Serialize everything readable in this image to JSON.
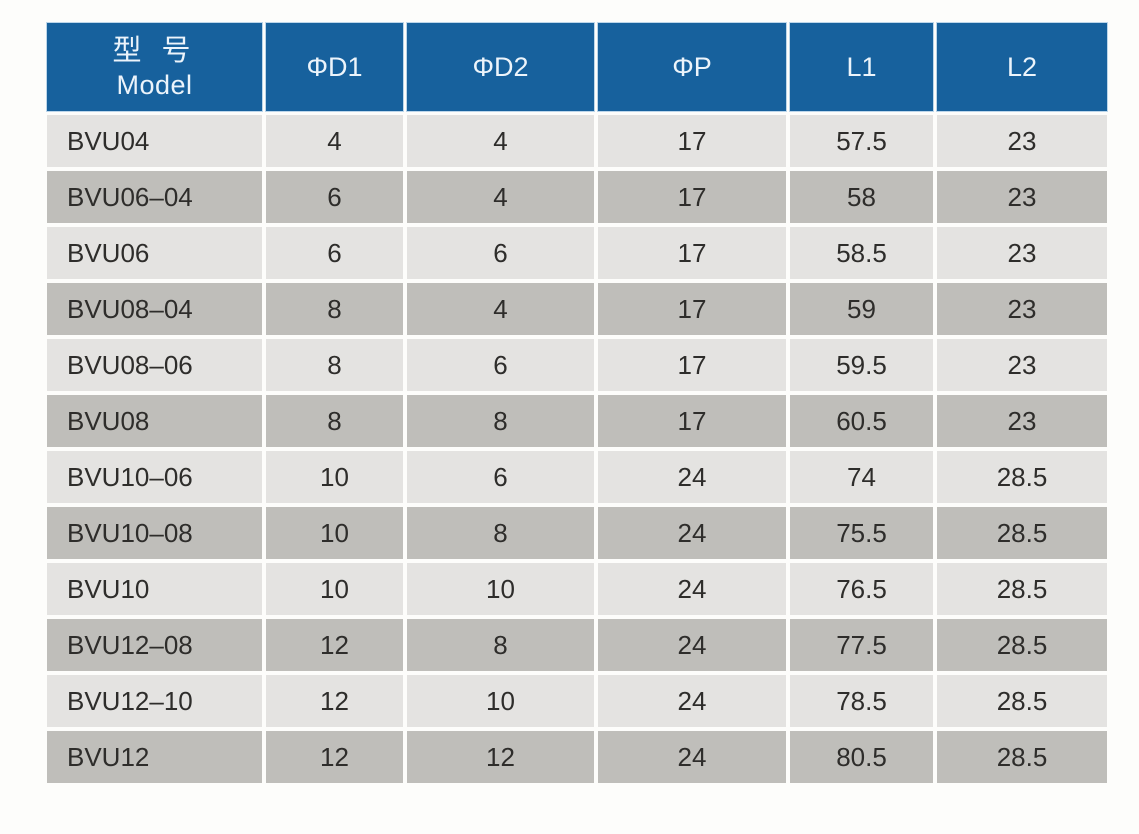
{
  "colors": {
    "header_bg": "#17619d",
    "header_text": "#ecf4fb",
    "row_light": "#e4e3e1",
    "row_dark": "#bfbeba",
    "data_text": "#2e2d2b",
    "page_bg": "#fdfdfb"
  },
  "table": {
    "header": {
      "model_zh": "型 号",
      "model_en": "Model",
      "columns": [
        "ΦD1",
        "ΦD2",
        "ΦP",
        "L1",
        "L2"
      ]
    },
    "rows": [
      [
        "BVU04",
        "4",
        "4",
        "17",
        "57.5",
        "23"
      ],
      [
        "BVU06–04",
        "6",
        "4",
        "17",
        "58",
        "23"
      ],
      [
        "BVU06",
        "6",
        "6",
        "17",
        "58.5",
        "23"
      ],
      [
        "BVU08–04",
        "8",
        "4",
        "17",
        "59",
        "23"
      ],
      [
        "BVU08–06",
        "8",
        "6",
        "17",
        "59.5",
        "23"
      ],
      [
        "BVU08",
        "8",
        "8",
        "17",
        "60.5",
        "23"
      ],
      [
        "BVU10–06",
        "10",
        "6",
        "24",
        "74",
        "28.5"
      ],
      [
        "BVU10–08",
        "10",
        "8",
        "24",
        "75.5",
        "28.5"
      ],
      [
        "BVU10",
        "10",
        "10",
        "24",
        "76.5",
        "28.5"
      ],
      [
        "BVU12–08",
        "12",
        "8",
        "24",
        "77.5",
        "28.5"
      ],
      [
        "BVU12–10",
        "12",
        "10",
        "24",
        "78.5",
        "28.5"
      ],
      [
        "BVU12",
        "12",
        "12",
        "24",
        "80.5",
        "28.5"
      ]
    ]
  },
  "chart_data": {
    "type": "table",
    "title": "",
    "columns": [
      "Model",
      "ΦD1",
      "ΦD2",
      "ΦP",
      "L1",
      "L2"
    ],
    "rows": [
      [
        "BVU04",
        4,
        4,
        17,
        57.5,
        23
      ],
      [
        "BVU06-04",
        6,
        4,
        17,
        58,
        23
      ],
      [
        "BVU06",
        6,
        6,
        17,
        58.5,
        23
      ],
      [
        "BVU08-04",
        8,
        4,
        17,
        59,
        23
      ],
      [
        "BVU08-06",
        8,
        6,
        17,
        59.5,
        23
      ],
      [
        "BVU08",
        8,
        8,
        17,
        60.5,
        23
      ],
      [
        "BVU10-06",
        10,
        6,
        24,
        74,
        28.5
      ],
      [
        "BVU10-08",
        10,
        8,
        24,
        75.5,
        28.5
      ],
      [
        "BVU10",
        10,
        10,
        24,
        76.5,
        28.5
      ],
      [
        "BVU12-08",
        12,
        8,
        24,
        77.5,
        28.5
      ],
      [
        "BVU12-10",
        12,
        10,
        24,
        78.5,
        28.5
      ],
      [
        "BVU12",
        12,
        12,
        24,
        80.5,
        28.5
      ]
    ]
  }
}
